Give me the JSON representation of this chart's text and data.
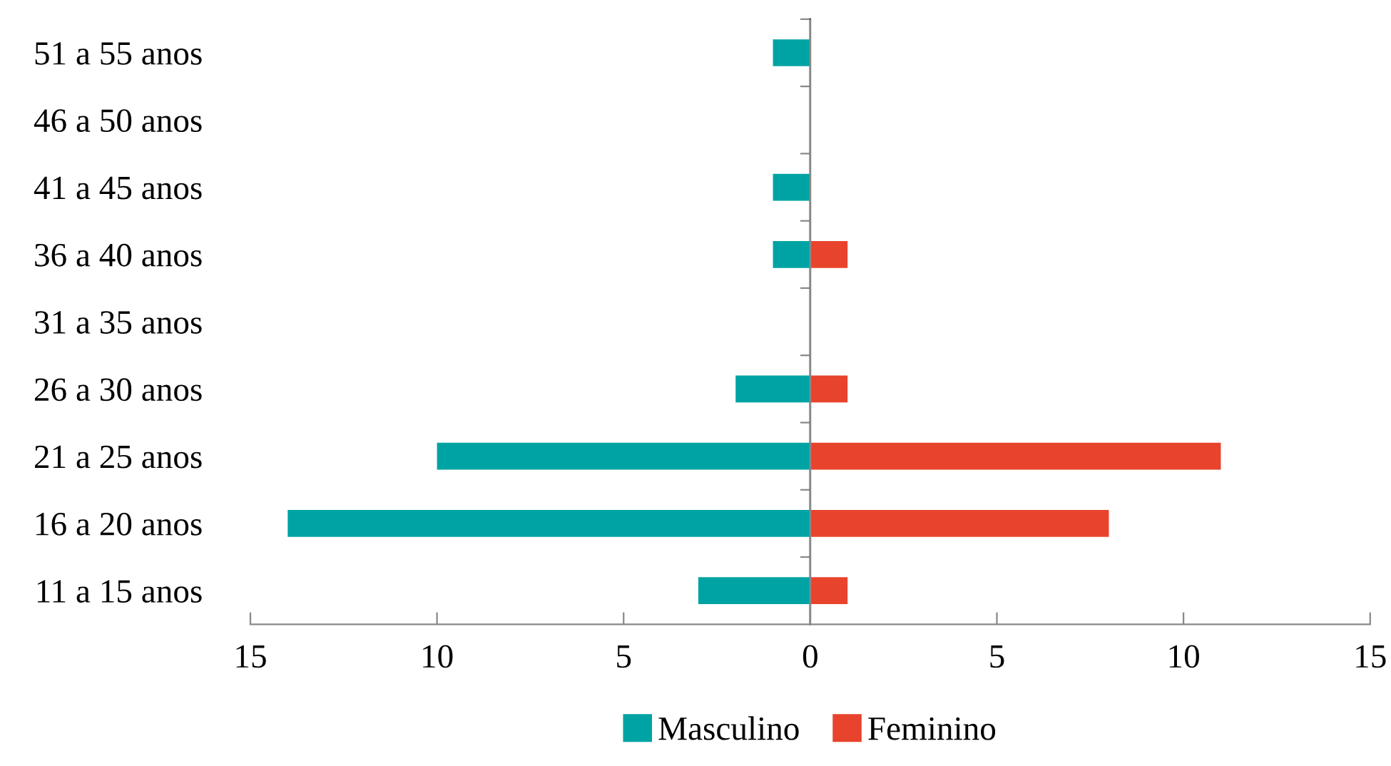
{
  "chart_data": {
    "type": "bar",
    "orientation": "horizontal",
    "categories": [
      "51 a 55 anos",
      "46 a 50 anos",
      "41 a 45 anos",
      "36 a 40 anos",
      "31 a 35 anos",
      "26 a 30 anos",
      "21 a 25 anos",
      "16 a 20 anos",
      "11 a 15 anos"
    ],
    "series": [
      {
        "name": "Masculino",
        "color": "#00a3a3",
        "values": [
          -1,
          0,
          -1,
          -1,
          0,
          -2,
          -10,
          -14,
          -3
        ]
      },
      {
        "name": "Feminino",
        "color": "#e8432d",
        "values": [
          0,
          0,
          0,
          1,
          0,
          1,
          11,
          8,
          1
        ]
      }
    ],
    "xlim": [
      -15,
      15
    ],
    "xticks": [
      {
        "value": -15,
        "label": "15"
      },
      {
        "value": -10,
        "label": "10"
      },
      {
        "value": -5,
        "label": "5"
      },
      0,
      5,
      10,
      15
    ],
    "ref_lines": [
      {
        "axis": "x",
        "value": 0,
        "color": "#888888"
      }
    ],
    "stacked": true,
    "grid": false,
    "legend": "bottom"
  }
}
